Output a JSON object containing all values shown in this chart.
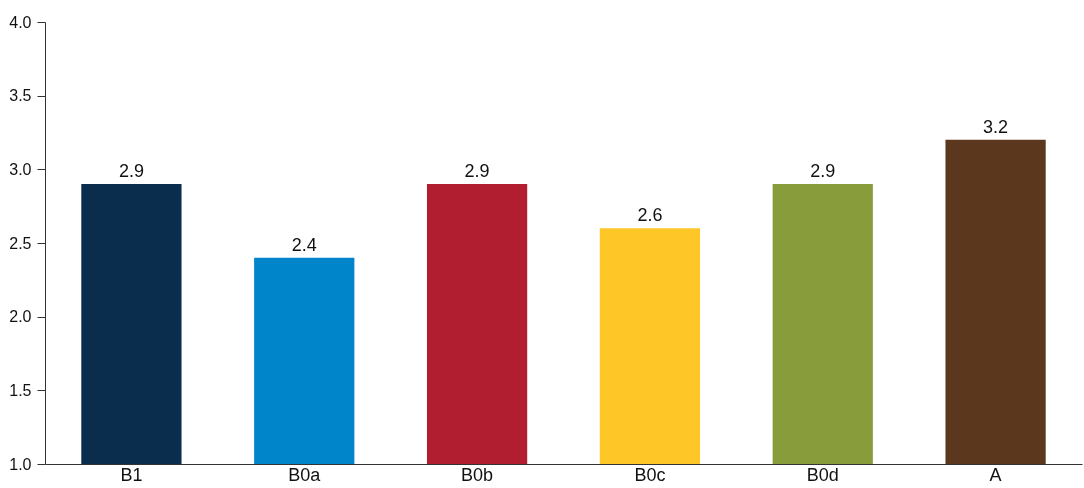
{
  "chart_data": {
    "type": "bar",
    "categories": [
      "B1",
      "B0a",
      "B0b",
      "B0c",
      "B0d",
      "A"
    ],
    "values": [
      2.9,
      2.4,
      2.9,
      2.6,
      2.9,
      3.2
    ],
    "colors": [
      "#0a2d4e",
      "#0085ca",
      "#b01e30",
      "#ffc627",
      "#899c3c",
      "#5b381d"
    ],
    "ylim": [
      1.0,
      4.0
    ],
    "yticks": [
      {
        "value": 1.0,
        "label": "1.0"
      },
      {
        "value": 1.5,
        "label": "1.5"
      },
      {
        "value": 2.0,
        "label": "2.0"
      },
      {
        "value": 2.5,
        "label": "2.5"
      },
      {
        "value": 3.0,
        "label": "3.0"
      },
      {
        "value": 3.5,
        "label": "3.5"
      },
      {
        "value": 4.0,
        "label": "4.0"
      }
    ],
    "data_labels": true,
    "grid": false
  }
}
